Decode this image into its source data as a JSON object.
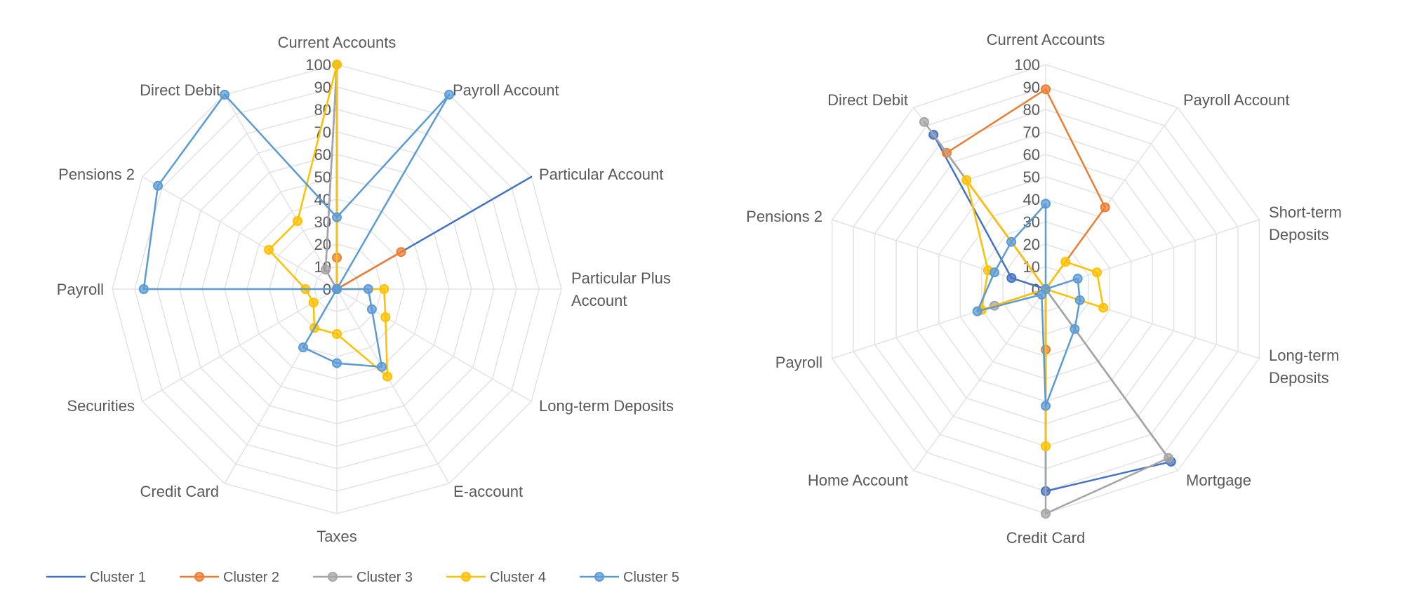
{
  "chart_data": [
    {
      "type": "radar",
      "title": "",
      "rmax": 100,
      "rmin": 0,
      "ticks": [
        0,
        10,
        20,
        30,
        40,
        50,
        60,
        70,
        80,
        90,
        100
      ],
      "categories": [
        "Current Accounts",
        "Payroll Account",
        "Particular Account",
        "Particular Plus Account",
        "Long-term Deposits",
        "E-account",
        "Taxes",
        "Credit Card",
        "Securities",
        "Payroll",
        "Pensions 2",
        "Direct Debit"
      ],
      "series": [
        {
          "name": "Cluster 1",
          "color": "#4472C4",
          "markers": false,
          "values": [
            100,
            0,
            100,
            0,
            0,
            0,
            0,
            0,
            0,
            0,
            0,
            10
          ]
        },
        {
          "name": "Cluster 2",
          "color": "#ED7D31",
          "markers": true,
          "values": [
            14,
            0,
            33,
            0,
            0,
            0,
            0,
            0,
            0,
            0,
            0,
            0
          ]
        },
        {
          "name": "Cluster 3",
          "color": "#A5A5A5",
          "markers": true,
          "values": [
            100,
            0,
            0,
            0,
            0,
            0,
            0,
            0,
            0,
            0,
            0,
            10
          ]
        },
        {
          "name": "Cluster 4",
          "color": "#FFC000",
          "markers": true,
          "values": [
            100,
            0,
            0,
            21,
            25,
            45,
            20,
            20,
            12,
            14,
            35,
            35
          ]
        },
        {
          "name": "Cluster 5",
          "color": "#5B9BD5",
          "markers": true,
          "values": [
            32,
            100,
            0,
            14,
            18,
            40,
            33,
            30,
            0,
            86,
            92,
            100
          ]
        }
      ]
    },
    {
      "type": "radar",
      "title": "",
      "rmax": 100,
      "rmin": 0,
      "ticks": [
        0,
        10,
        20,
        30,
        40,
        50,
        60,
        70,
        80,
        90,
        100
      ],
      "categories": [
        "Current Accounts",
        "Payroll Account",
        "Short-term Deposits",
        "Long-term Deposits",
        "Mortgage",
        "Credit Card",
        "Home Account",
        "Payroll",
        "Pensions 2",
        "Direct Debit"
      ],
      "series": [
        {
          "name": "Cluster 1",
          "color": "#4472C4",
          "markers": true,
          "values": [
            0,
            0,
            0,
            0,
            95,
            90,
            0,
            0,
            16,
            85
          ]
        },
        {
          "name": "Cluster 2",
          "color": "#ED7D31",
          "markers": true,
          "values": [
            89,
            45,
            0,
            0,
            0,
            27,
            0,
            0,
            0,
            75
          ]
        },
        {
          "name": "Cluster 3",
          "color": "#A5A5A5",
          "markers": true,
          "values": [
            0,
            0,
            0,
            0,
            93,
            100,
            0,
            24,
            0,
            92
          ]
        },
        {
          "name": "Cluster 4",
          "color": "#FFC000",
          "markers": true,
          "values": [
            0,
            15,
            24,
            27,
            0,
            70,
            0,
            30,
            27,
            60
          ]
        },
        {
          "name": "Cluster 5",
          "color": "#5B9BD5",
          "markers": true,
          "values": [
            38,
            0,
            15,
            16,
            22,
            52,
            3,
            32,
            24,
            26
          ]
        }
      ]
    }
  ],
  "legend": {
    "items": [
      "Cluster 1",
      "Cluster 2",
      "Cluster 3",
      "Cluster 4",
      "Cluster 5"
    ]
  }
}
